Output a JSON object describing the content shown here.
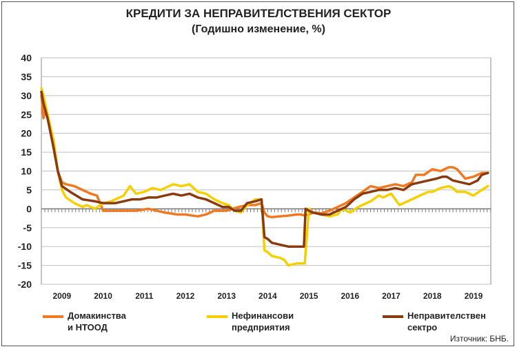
{
  "title": "КРЕДИТИ ЗА НЕПРАВИТЕЛСТВЕНИЯ СЕКТОР",
  "subtitle": "(Годишно изменение, %)",
  "source": "Източник: БНБ.",
  "legend": [
    {
      "line1": "Домакинства",
      "line2": "и НТООД"
    },
    {
      "line1": "Нефинансови",
      "line2": "предприятия"
    },
    {
      "line1": "Неправителствен",
      "line2": "сектро"
    }
  ],
  "chart_data": {
    "type": "line",
    "title": "КРЕДИТИ ЗА НЕПРАВИТЕЛСТВЕНИЯ СЕКТОР",
    "subtitle": "(Годишно изменение, %)",
    "ylim": [
      -20,
      40
    ],
    "yticks": [
      -20,
      -15,
      -10,
      -5,
      0,
      5,
      10,
      15,
      20,
      25,
      30,
      35,
      40
    ],
    "xlim": [
      2009.0,
      2019.92
    ],
    "year_labels": [
      "2009",
      "2010",
      "2011",
      "2012",
      "2013",
      "2014",
      "2015",
      "2016",
      "2017",
      "2018",
      "2019"
    ],
    "grid": true,
    "legend_position": "bottom",
    "series": [
      {
        "name": "Домакинства и НТООД",
        "color": "#F07820",
        "x": [
          2009.0,
          2009.05,
          2009.1,
          2009.2,
          2009.3,
          2009.4,
          2009.5,
          2009.6,
          2009.8,
          2010.0,
          2010.2,
          2010.35,
          2010.5,
          2010.7,
          2011.0,
          2011.3,
          2011.6,
          2012.0,
          2012.3,
          2012.5,
          2012.8,
          2013.0,
          2013.2,
          2013.5,
          2013.8,
          2014.0,
          2014.2,
          2014.35,
          2014.42,
          2014.5,
          2014.6,
          2014.8,
          2015.0,
          2015.2,
          2015.3,
          2015.4,
          2015.5,
          2015.6,
          2015.8,
          2016.0,
          2016.2,
          2016.4,
          2016.6,
          2016.8,
          2017.0,
          2017.2,
          2017.4,
          2017.6,
          2017.8,
          2018.0,
          2018.1,
          2018.3,
          2018.5,
          2018.7,
          2018.9,
          2019.0,
          2019.1,
          2019.3,
          2019.5,
          2019.7,
          2019.85
        ],
        "y": [
          30,
          24,
          26,
          22,
          16,
          10,
          7,
          6.5,
          6,
          5,
          4,
          3.5,
          -0.5,
          -0.5,
          -0.5,
          -0.5,
          0,
          -1,
          -1.5,
          -1.5,
          -2,
          -1.5,
          -0.5,
          -0.5,
          0.5,
          1,
          1,
          1.5,
          -1,
          -2,
          -2.2,
          -2,
          -1.8,
          -1.5,
          -1.5,
          -1.8,
          -1.5,
          -1,
          -1.2,
          -0.5,
          0.5,
          1.5,
          3,
          4.5,
          6,
          5.5,
          6,
          6.5,
          6,
          7,
          9,
          9,
          10.5,
          10,
          11,
          11,
          10.5,
          8,
          8.5,
          9.5,
          9.5
        ]
      },
      {
        "name": "Нефинансови предприятия",
        "color": "#F5D000",
        "x": [
          2009.0,
          2009.05,
          2009.15,
          2009.3,
          2009.4,
          2009.5,
          2009.6,
          2009.8,
          2010.0,
          2010.1,
          2010.3,
          2010.5,
          2010.7,
          2010.9,
          2011.0,
          2011.15,
          2011.3,
          2011.5,
          2011.7,
          2011.9,
          2012.0,
          2012.2,
          2012.4,
          2012.6,
          2012.8,
          2013.0,
          2013.2,
          2013.4,
          2013.55,
          2013.7,
          2013.85,
          2014.0,
          2014.2,
          2014.35,
          2014.42,
          2014.5,
          2014.6,
          2014.8,
          2014.9,
          2015.0,
          2015.2,
          2015.35,
          2015.4,
          2015.5,
          2015.6,
          2015.8,
          2016.0,
          2016.2,
          2016.3,
          2016.5,
          2016.7,
          2017.0,
          2017.2,
          2017.3,
          2017.5,
          2017.7,
          2018.0,
          2018.2,
          2018.4,
          2018.5,
          2018.7,
          2018.9,
          2019.0,
          2019.1,
          2019.3,
          2019.5,
          2019.7,
          2019.85
        ],
        "y": [
          32,
          30,
          25,
          18,
          10,
          5,
          3,
          1.5,
          0.5,
          1,
          0,
          1.5,
          2,
          3,
          3.5,
          6,
          4,
          4.5,
          5.5,
          5,
          5.5,
          6.5,
          6,
          6.5,
          4.5,
          4,
          2.5,
          1.5,
          1,
          -0.5,
          -1,
          1,
          2.5,
          2.5,
          -11,
          -11.5,
          -12.5,
          -13,
          -13.5,
          -15,
          -14.5,
          -14.5,
          -14.5,
          0,
          -1,
          -1.5,
          -2,
          -1.5,
          0,
          -1,
          0.5,
          2,
          3.5,
          3,
          4,
          1,
          2.5,
          3.5,
          4.5,
          4.5,
          5.5,
          6,
          5.5,
          4.5,
          4.5,
          3.5,
          5,
          6
        ]
      },
      {
        "name": "Неправителствен сектро",
        "color": "#8B3A0E",
        "x": [
          2009.0,
          2009.05,
          2009.15,
          2009.3,
          2009.4,
          2009.5,
          2009.7,
          2010.0,
          2010.3,
          2010.5,
          2010.8,
          2011.0,
          2011.2,
          2011.4,
          2011.6,
          2011.8,
          2012.0,
          2012.2,
          2012.4,
          2012.6,
          2012.8,
          2013.0,
          2013.2,
          2013.4,
          2013.55,
          2013.7,
          2013.85,
          2014.0,
          2014.2,
          2014.35,
          2014.42,
          2014.5,
          2014.6,
          2014.8,
          2015.0,
          2015.1,
          2015.3,
          2015.38,
          2015.42,
          2015.5,
          2015.6,
          2015.8,
          2016.0,
          2016.2,
          2016.4,
          2016.6,
          2016.8,
          2017.0,
          2017.2,
          2017.4,
          2017.6,
          2017.8,
          2018.0,
          2018.2,
          2018.4,
          2018.6,
          2018.75,
          2018.85,
          2019.0,
          2019.2,
          2019.4,
          2019.6,
          2019.7,
          2019.85
        ],
        "y": [
          31,
          28,
          24,
          16,
          10,
          6,
          4.5,
          2.5,
          2,
          1.5,
          1.5,
          2,
          2.5,
          2.5,
          3,
          3,
          3.5,
          4,
          3.5,
          4,
          3,
          2.5,
          1.5,
          0.5,
          0.5,
          -0.5,
          -0.5,
          1.5,
          2,
          2.5,
          -7.5,
          -8,
          -9,
          -9.5,
          -10,
          -10,
          -10,
          -10,
          0,
          -0.5,
          -1,
          -1.5,
          -1.5,
          -0.5,
          0.5,
          2.5,
          4,
          4.5,
          5,
          5,
          5.5,
          5,
          6.5,
          7,
          7.5,
          8,
          8.5,
          8.5,
          7.5,
          7,
          6.5,
          7.5,
          9,
          9.5
        ]
      }
    ]
  }
}
